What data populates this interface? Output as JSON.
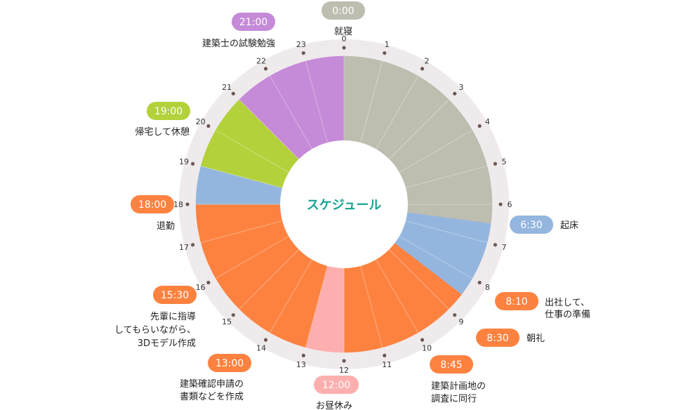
{
  "chart_data": {
    "type": "pie",
    "title": "スケジュール",
    "title_color": "#17a394",
    "hours": [
      "0",
      "1",
      "2",
      "3",
      "4",
      "5",
      "6",
      "7",
      "8",
      "9",
      "10",
      "11",
      "12",
      "13",
      "14",
      "15",
      "16",
      "17",
      "18",
      "19",
      "20",
      "21",
      "22",
      "23"
    ],
    "segments": [
      {
        "start": 0,
        "end": 6.5,
        "color": "#bdbdb0"
      },
      {
        "start": 6.5,
        "end": 8.1667,
        "color": "#94b6de"
      },
      {
        "start": 8.1667,
        "end": 8.5,
        "color": "#94b6de"
      },
      {
        "start": 8.5,
        "end": 8.75,
        "color": "#fd8240"
      },
      {
        "start": 8.75,
        "end": 12,
        "color": "#fd8240"
      },
      {
        "start": 12,
        "end": 13,
        "color": "#fdaeae"
      },
      {
        "start": 13,
        "end": 15.5,
        "color": "#fd8240"
      },
      {
        "start": 15.5,
        "end": 18,
        "color": "#fd8240"
      },
      {
        "start": 18,
        "end": 19,
        "color": "#94b6de"
      },
      {
        "start": 19,
        "end": 21,
        "color": "#b3d13a"
      },
      {
        "start": 21,
        "end": 24,
        "color": "#c58ad8"
      }
    ],
    "events": [
      {
        "time": "0:00",
        "label": "就寝",
        "color": "#bdbdb0"
      },
      {
        "time": "6:30",
        "label": "起床",
        "color": "#94b6de"
      },
      {
        "time": "8:10",
        "label": "出社して、\n仕事の準備",
        "color": "#fd8240"
      },
      {
        "time": "8:30",
        "label": "朝礼",
        "color": "#fd8240"
      },
      {
        "time": "8:45",
        "label": "建築計画地の\n調査に同行",
        "color": "#fd8240"
      },
      {
        "time": "12:00",
        "label": "お昼休み",
        "color": "#fdaeae"
      },
      {
        "time": "13:00",
        "label": "建築確認申請の\n書類などを作成",
        "color": "#fd8240"
      },
      {
        "time": "15:30",
        "label": "先輩に指導\nしてもらいながら、\n3Dモデル作成",
        "color": "#fd8240"
      },
      {
        "time": "18:00",
        "label": "退勤",
        "color": "#fd8240"
      },
      {
        "time": "19:00",
        "label": "帰宅して休憩",
        "color": "#b3d13a"
      },
      {
        "time": "21:00",
        "label": "建築士の試験勉強",
        "color": "#c58ad8"
      }
    ]
  }
}
